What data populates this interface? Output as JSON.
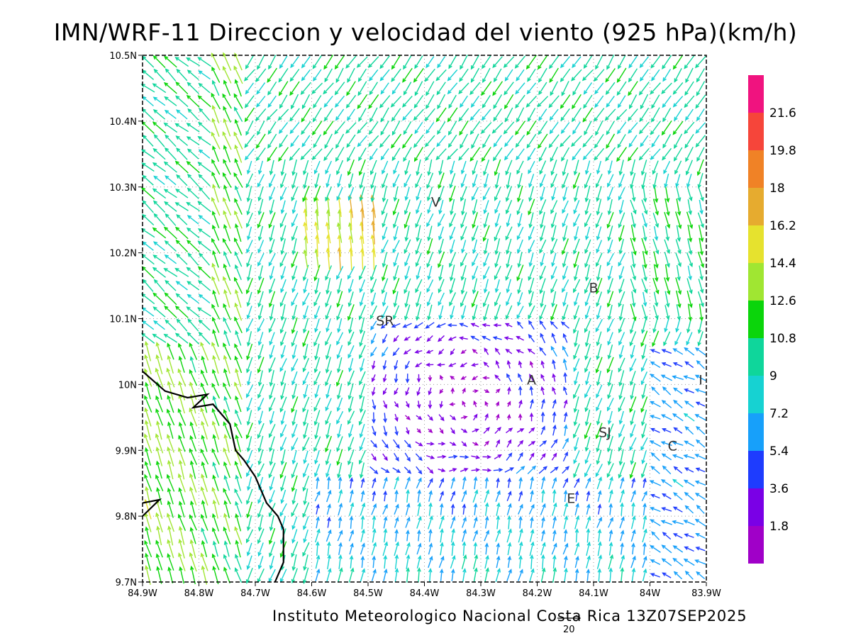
{
  "title": "IMN/WRF-11 Direccion y velocidad del viento (925 hPa)(km/h)",
  "footer": "Instituto Meteorologico Nacional Costa Rica 13Z07SEP2025",
  "chart_data": {
    "type": "vector-field",
    "xaxis": {
      "range": [
        -84.9,
        -83.9
      ],
      "tick_labels": [
        "84.9W",
        "84.8W",
        "84.7W",
        "84.6W",
        "84.5W",
        "84.4W",
        "84.3W",
        "84.2W",
        "84.1W",
        "84W",
        "83.9W"
      ]
    },
    "yaxis": {
      "range": [
        9.7,
        10.5
      ],
      "tick_labels": [
        "9.7N",
        "9.8N",
        "9.9N",
        "10N",
        "10.1N",
        "10.2N",
        "10.3N",
        "10.4N",
        "10.5N"
      ]
    },
    "grid": "dotted",
    "places": [
      {
        "label": "V",
        "lon": -84.38,
        "lat": 10.27
      },
      {
        "label": "B",
        "lon": -84.1,
        "lat": 10.14
      },
      {
        "label": "SR",
        "lon": -84.47,
        "lat": 10.09
      },
      {
        "label": "A",
        "lon": -84.21,
        "lat": 10.0
      },
      {
        "label": "I",
        "lon": -83.91,
        "lat": 10.0
      },
      {
        "label": "SJ",
        "lon": -84.08,
        "lat": 9.92
      },
      {
        "label": "C",
        "lon": -83.96,
        "lat": 9.9
      },
      {
        "label": "E",
        "lon": -84.14,
        "lat": 9.82
      }
    ],
    "colorbar": {
      "levels": [
        "21.6",
        "19.8",
        "18",
        "16.2",
        "14.4",
        "12.6",
        "10.8",
        "9",
        "7.2",
        "5.4",
        "3.6",
        "1.8"
      ],
      "colors": [
        "#f0137f",
        "#f6453a",
        "#f08226",
        "#e6ab2f",
        "#e6e22e",
        "#a0e632",
        "#0bd50b",
        "#0fd69b",
        "#16d2d2",
        "#17a0fa",
        "#1e3cfe",
        "#7a00e6",
        "#a000c8"
      ]
    },
    "reference_vector": {
      "label": "20",
      "speed": 20
    },
    "coastline": [
      [
        -84.9,
        10.02
      ],
      [
        -84.86,
        9.99
      ],
      [
        -84.82,
        9.98
      ],
      [
        -84.785,
        9.985
      ],
      [
        -84.81,
        9.965
      ],
      [
        -84.775,
        9.97
      ],
      [
        -84.745,
        9.94
      ],
      [
        -84.735,
        9.9
      ],
      [
        -84.72,
        9.885
      ],
      [
        -84.7,
        9.86
      ],
      [
        -84.68,
        9.82
      ],
      [
        -84.66,
        9.8
      ],
      [
        -84.65,
        9.78
      ],
      [
        -84.65,
        9.73
      ],
      [
        -84.665,
        9.7
      ]
    ],
    "peninsula": [
      [
        -84.9,
        9.82
      ],
      [
        -84.87,
        9.825
      ],
      [
        -84.9,
        9.8
      ]
    ]
  }
}
